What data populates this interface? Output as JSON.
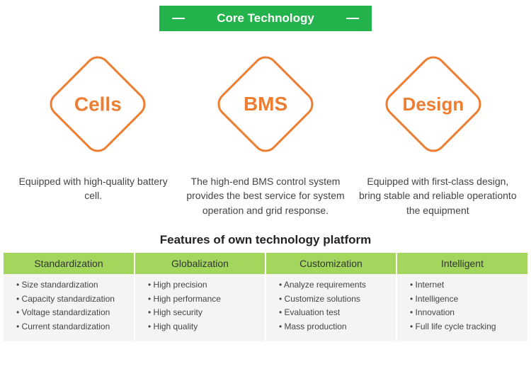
{
  "colors": {
    "banner_bg": "#24b24c",
    "banner_text": "#ffffff",
    "banner_dash": "#ffffff",
    "diamond_border": "#ed7d31",
    "diamond_text": "#ed7d31",
    "table_header_bg": "#a4d65e",
    "table_body_bg": "#f4f4f2",
    "text_primary": "#333333"
  },
  "header": {
    "title": "Core Technology"
  },
  "diamonds": [
    {
      "label": "Cells",
      "desc": "Equipped with high-quality battery cell."
    },
    {
      "label": "BMS",
      "desc": "The high-end BMS control system provides the best service for system operation and grid response."
    },
    {
      "label": "Design",
      "desc": "Equipped with first-class design, bring stable and reliable operationto the equipment"
    }
  ],
  "features": {
    "title": "Features of own technology platform",
    "columns": [
      {
        "header": "Standardization",
        "items": [
          "Size standardization",
          "Capacity standardization",
          "Voltage standardization",
          "Current standardization"
        ]
      },
      {
        "header": "Globalization",
        "items": [
          "High precision",
          "High performance",
          "High security",
          "High quality"
        ]
      },
      {
        "header": "Customization",
        "items": [
          "Analyze requirements",
          "Customize  solutions",
          "Evaluation test",
          "Mass production"
        ]
      },
      {
        "header": "Intelligent",
        "items": [
          "Internet",
          "Intelligence",
          "Innovation",
          "Full life cycle tracking"
        ]
      }
    ]
  }
}
